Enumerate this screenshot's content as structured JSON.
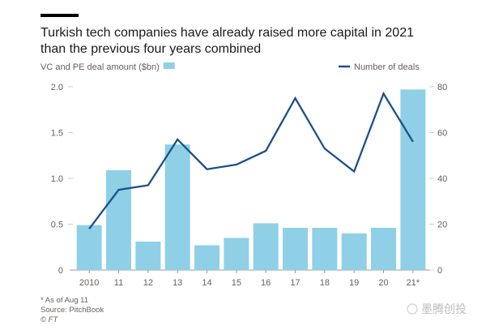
{
  "chart_data": {
    "type": "bar+line",
    "title_lines": [
      "Turkish tech companies have already raised more capital in 2021",
      "than the previous four years combined"
    ],
    "categories": [
      "2010",
      "11",
      "12",
      "13",
      "14",
      "15",
      "16",
      "17",
      "18",
      "19",
      "20",
      "21*"
    ],
    "series": [
      {
        "name": "VC and PE deal amount ($bn)",
        "type": "bar",
        "axis": "left",
        "color": "#8fd0e6",
        "values": [
          0.49,
          1.09,
          0.31,
          1.37,
          0.27,
          0.35,
          0.51,
          0.46,
          0.46,
          0.4,
          0.46,
          1.97
        ]
      },
      {
        "name": "Number of deals",
        "type": "line",
        "axis": "right",
        "color": "#1c4f8c",
        "values": [
          18,
          35,
          37,
          57,
          44,
          46,
          52,
          75,
          53,
          43,
          77,
          56
        ]
      }
    ],
    "left_axis": {
      "ylim": [
        0,
        2.0
      ],
      "ticks": [
        "0",
        "0.5",
        "1.0",
        "1.5",
        "2.0"
      ],
      "tick_values": [
        0,
        0.5,
        1.0,
        1.5,
        2.0
      ]
    },
    "right_axis": {
      "ylim": [
        0,
        80
      ],
      "ticks": [
        "0",
        "20",
        "40",
        "60",
        "80"
      ],
      "tick_values": [
        0,
        20,
        40,
        60,
        80
      ]
    },
    "legend": {
      "left_label": "VC and PE deal amount ($bn)",
      "right_label": "Number of deals"
    },
    "notes": [
      "* As of Aug 11",
      "Source: PitchBook",
      "© FT"
    ]
  },
  "watermark": "墨腾创投"
}
